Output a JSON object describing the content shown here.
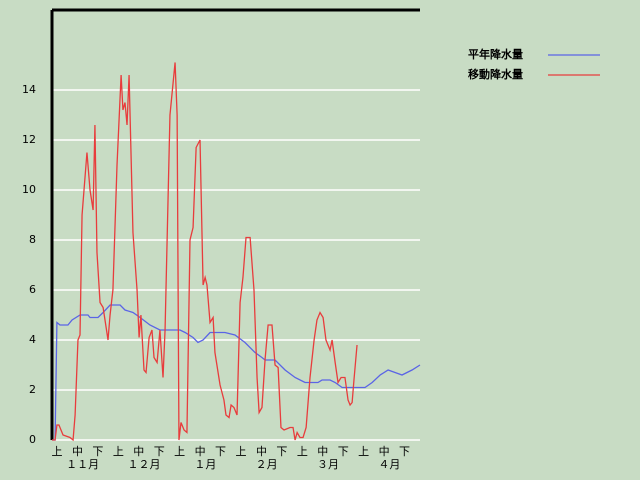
{
  "chart_data": {
    "type": "line",
    "categories": [
      "上",
      "中",
      "下",
      "上",
      "中",
      "下",
      "上",
      "中",
      "下",
      "上",
      "中",
      "下",
      "上",
      "中",
      "下",
      "上",
      "中",
      "下"
    ],
    "month_labels": [
      "１１月",
      "１２月",
      "１月",
      "２月",
      "３月",
      "４月"
    ],
    "xlim": [
      0,
      180
    ],
    "ylim": [
      0,
      17.2
    ],
    "yticks": [
      0,
      2,
      4,
      6,
      8,
      10,
      12,
      14
    ],
    "grid": true,
    "legend": "upper-right",
    "series": [
      {
        "name": "平年降水量",
        "color": "#5a64e6",
        "x": [
          0,
          1.5,
          2.4,
          3.9,
          7.8,
          9.8,
          13.7,
          17.6,
          18.6,
          22.5,
          25,
          28.4,
          33.3,
          35.7,
          39.6,
          43.1,
          47.9,
          52.8,
          55.3,
          62.6,
          65.1,
          69,
          71.4,
          73.9,
          77.3,
          84.6,
          89.5,
          94.4,
          99.3,
          102.7,
          104.2,
          109.1,
          114,
          118.9,
          123.8,
          130.1,
          132.1,
          136,
          138.5,
          141.9,
          153.1,
          156.6,
          160.5,
          164.4,
          167.8,
          171.2,
          176.1,
          180
        ],
        "values": [
          0,
          0,
          4.7,
          4.6,
          4.6,
          4.8,
          5,
          5,
          4.9,
          4.9,
          5.1,
          5.4,
          5.4,
          5.2,
          5.1,
          4.9,
          4.6,
          4.4,
          4.4,
          4.4,
          4.3,
          4.1,
          3.9,
          4,
          4.3,
          4.3,
          4.2,
          3.9,
          3.5,
          3.3,
          3.2,
          3.2,
          2.8,
          2.5,
          2.3,
          2.3,
          2.4,
          2.4,
          2.3,
          2.1,
          2.1,
          2.3,
          2.6,
          2.8,
          2.7,
          2.6,
          2.8,
          3
        ]
      },
      {
        "name": "移動降水量",
        "color": "#e83c3c",
        "x": [
          0,
          1.5,
          2.4,
          3.4,
          5.4,
          8.8,
          10.3,
          11.3,
          12.7,
          13.7,
          14.7,
          17.1,
          18.6,
          20.1,
          21,
          22,
          23.5,
          25,
          27.4,
          28.4,
          29.8,
          31.8,
          33.8,
          34.7,
          35.7,
          36.7,
          37.7,
          39.6,
          41.6,
          42.6,
          43.5,
          45,
          46,
          47.5,
          48.9,
          49.9,
          51.4,
          52.8,
          54.3,
          55.3,
          57.7,
          60.2,
          61.2,
          62.1,
          63.1,
          64.6,
          66,
          67.5,
          69,
          70.5,
          72.4,
          73.9,
          74.9,
          75.8,
          77.3,
          78.8,
          79.7,
          82.2,
          84.1,
          85.1,
          86.6,
          87.6,
          89,
          90.5,
          92,
          93.4,
          94.9,
          96.9,
          98.8,
          100.3,
          101.3,
          102.7,
          104.2,
          105.7,
          107.6,
          109.1,
          110.6,
          112,
          113.5,
          116.4,
          117.9,
          118.9,
          119.9,
          121.3,
          122.8,
          124.3,
          126.2,
          128.2,
          129.6,
          131.1,
          132.6,
          134,
          135,
          136,
          137,
          138.5,
          139.9,
          141.4,
          143.3,
          144.8,
          145.8,
          146.8,
          147.7,
          149.2
        ],
        "values": [
          0,
          0,
          0.6,
          0.6,
          0.2,
          0.1,
          0,
          1,
          4,
          4.2,
          9,
          11.5,
          10,
          9.2,
          12.6,
          7.5,
          5.5,
          5.3,
          4,
          5,
          6,
          11,
          14.6,
          13.2,
          13.5,
          12.6,
          14.6,
          8.3,
          6,
          4.1,
          5,
          2.8,
          2.7,
          4.1,
          4.4,
          3.3,
          3.1,
          4.4,
          2.5,
          4.4,
          13,
          15.1,
          13,
          0,
          0.7,
          0.4,
          0.3,
          8,
          8.5,
          11.7,
          12,
          6.2,
          6.5,
          6.2,
          4.7,
          4.9,
          3.5,
          2.2,
          1.6,
          1,
          0.9,
          1.4,
          1.3,
          1,
          5.5,
          6.5,
          8.1,
          8.1,
          6,
          2.5,
          1.1,
          1.3,
          3.2,
          4.6,
          4.6,
          3,
          2.9,
          0.5,
          0.4,
          0.5,
          0.5,
          0,
          0.3,
          0.1,
          0.1,
          0.5,
          2.5,
          4,
          4.8,
          5.1,
          4.9,
          4,
          3.8,
          3.6,
          4,
          3.1,
          2.3,
          2.5,
          2.5,
          1.6,
          1.4,
          1.5,
          2.4,
          3.8
        ]
      }
    ]
  }
}
